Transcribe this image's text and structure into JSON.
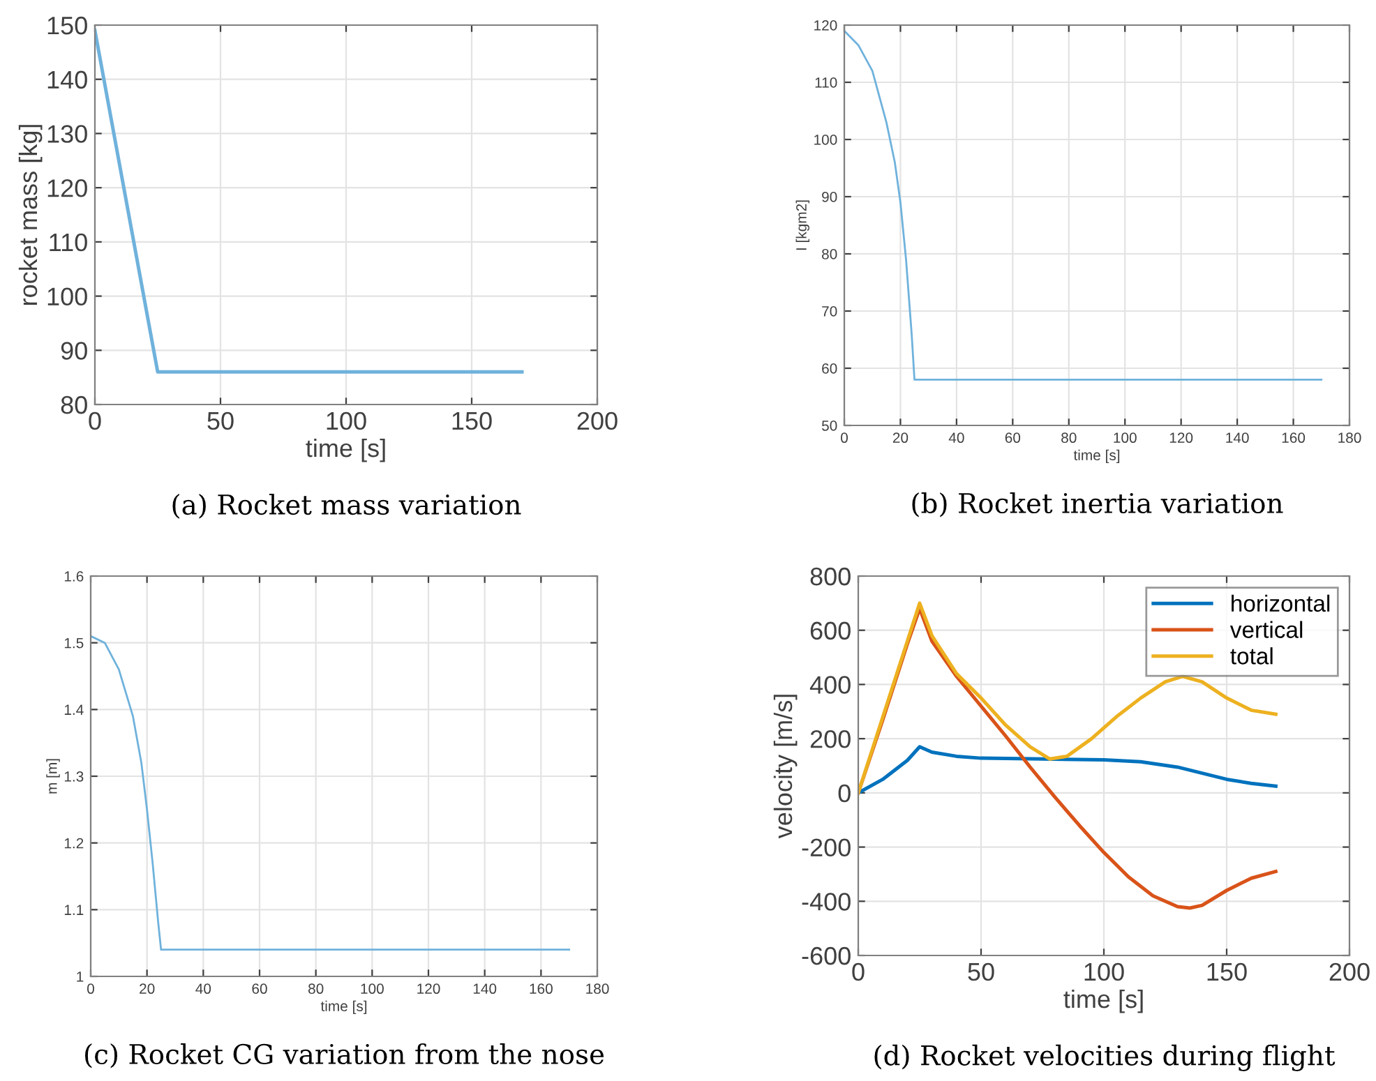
{
  "chart_data": [
    {
      "type": "line",
      "title": "(a) Rocket mass variation",
      "xlabel": "time [s]",
      "ylabel": "rocket mass [kg]",
      "grid": true,
      "xlim": [
        0,
        200
      ],
      "xticks": [
        0,
        50,
        100,
        150,
        200
      ],
      "ylim": [
        80,
        150
      ],
      "yticks": [
        80,
        90,
        100,
        110,
        120,
        130,
        140,
        150
      ],
      "series": [
        {
          "color": "#6fb2dc",
          "x": [
            0,
            25,
            170
          ],
          "values": [
            149,
            86,
            86
          ]
        }
      ]
    },
    {
      "type": "line",
      "title": "(b) Rocket inertia variation",
      "xlabel": "time [s]",
      "ylabel": "I [kgm2]",
      "grid": true,
      "xlim": [
        0,
        180
      ],
      "xticks": [
        0,
        20,
        40,
        60,
        80,
        100,
        120,
        140,
        160,
        180
      ],
      "ylim": [
        50,
        120
      ],
      "yticks": [
        50,
        60,
        70,
        80,
        90,
        100,
        110,
        120
      ],
      "series": [
        {
          "color": "#6fb2dc",
          "x": [
            0,
            5,
            10,
            15,
            18,
            20,
            22,
            24,
            25,
            170
          ],
          "values": [
            119,
            116.5,
            112,
            103,
            96,
            89,
            79,
            66,
            58,
            58
          ]
        }
      ]
    },
    {
      "type": "line",
      "title": "(c) Rocket CG variation from the nose",
      "xlabel": "time [s]",
      "ylabel": "m [m]",
      "grid": true,
      "xlim": [
        0,
        180
      ],
      "xticks": [
        0,
        20,
        40,
        60,
        80,
        100,
        120,
        140,
        160,
        180
      ],
      "ylim": [
        1,
        1.6
      ],
      "yticks": [
        1,
        1.1,
        1.2,
        1.3,
        1.4,
        1.5,
        1.6
      ],
      "series": [
        {
          "color": "#6fb2dc",
          "x": [
            0,
            5,
            10,
            15,
            18,
            20,
            22,
            24,
            25,
            170
          ],
          "values": [
            1.51,
            1.5,
            1.46,
            1.39,
            1.32,
            1.25,
            1.17,
            1.08,
            1.04,
            1.04
          ]
        }
      ]
    },
    {
      "type": "line",
      "title": "(d) Rocket velocities during flight",
      "xlabel": "time [s]",
      "ylabel": "velocity [m/s]",
      "grid": true,
      "legend": "top right",
      "xlim": [
        0,
        200
      ],
      "xticks": [
        0,
        50,
        100,
        150,
        200
      ],
      "ylim": [
        -600,
        800
      ],
      "yticks": [
        -600,
        -400,
        -200,
        0,
        200,
        400,
        600,
        800
      ],
      "series": [
        {
          "name": "horizontal",
          "color": "#0072bd",
          "x": [
            0,
            10,
            20,
            25,
            30,
            40,
            50,
            75,
            100,
            115,
            130,
            150,
            160,
            170
          ],
          "values": [
            0,
            50,
            120,
            170,
            150,
            135,
            128,
            125,
            122,
            115,
            95,
            50,
            35,
            25
          ]
        },
        {
          "name": "vertical",
          "color": "#d95319",
          "x": [
            0,
            10,
            20,
            25,
            30,
            40,
            50,
            60,
            70,
            80,
            90,
            100,
            110,
            120,
            130,
            135,
            140,
            150,
            160,
            170
          ],
          "values": [
            0,
            270,
            550,
            680,
            560,
            430,
            320,
            210,
            95,
            -15,
            -120,
            -220,
            -310,
            -380,
            -420,
            -425,
            -415,
            -360,
            -315,
            -290
          ]
        },
        {
          "name": "total",
          "color": "#edb120",
          "x": [
            0,
            10,
            20,
            25,
            30,
            40,
            50,
            60,
            70,
            78,
            85,
            95,
            105,
            115,
            125,
            132,
            140,
            150,
            160,
            170
          ],
          "values": [
            0,
            280,
            560,
            700,
            580,
            440,
            350,
            250,
            170,
            125,
            135,
            200,
            280,
            350,
            410,
            430,
            410,
            350,
            305,
            290
          ]
        }
      ]
    }
  ]
}
